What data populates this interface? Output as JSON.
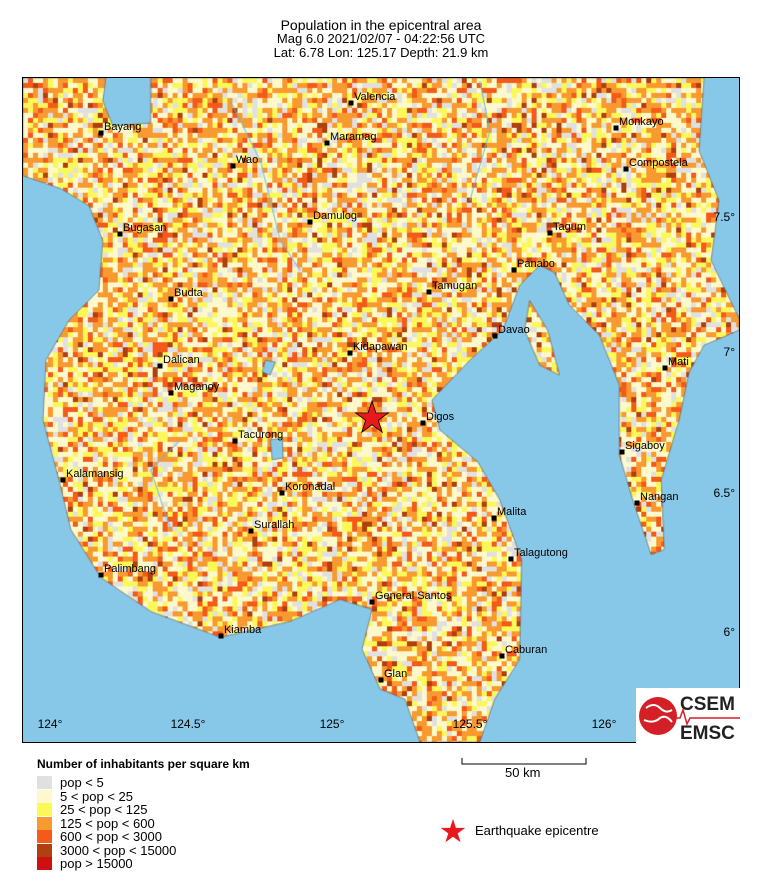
{
  "title": "Population in the epicentral area",
  "subtitle": "Mag 6.0  2021/02/07 - 04:22:56 UTC",
  "location": "Lat:  6.78    Lon: 125.17     Depth:  21.9 km",
  "colors": {
    "sea": "#87c8e8",
    "epicentre": "#e8181c"
  },
  "lon_ticks": [
    "124°",
    "124.5°",
    "125°",
    "125.5°",
    "126°"
  ],
  "lat_ticks": [
    "7.5°",
    "7°",
    "6.5°",
    "6°"
  ],
  "cities": [
    "Valencia",
    "Bayang",
    "Maramag",
    "Monkayo",
    "Wao",
    "Compostela",
    "Damulog",
    "Bugasan",
    "Tagum",
    "Panabo",
    "Tamugan",
    "Budta",
    "Davao",
    "Kidapawan",
    "Dalican",
    "Mati",
    "Maganoy",
    "Digos",
    "Tacurong",
    "Sigaboy",
    "Kalamansig",
    "Koronadal",
    "Nangan",
    "Malita",
    "Surallah",
    "Talagutong",
    "Palimbang",
    "General Santos",
    "Kiamba",
    "Caburan",
    "Glan"
  ],
  "legend": {
    "title": "Number of inhabitants per square km",
    "items": [
      {
        "label": "pop < 5",
        "color": "#e0e0e0"
      },
      {
        "label": "5 < pop < 25",
        "color": "#fdf9cc"
      },
      {
        "label": "25 < pop < 125",
        "color": "#fcf85a"
      },
      {
        "label": "125 < pop < 600",
        "color": "#f99a30"
      },
      {
        "label": "600 < pop < 3000",
        "color": "#f45a1a"
      },
      {
        "label": "3000 < pop < 15000",
        "color": "#b0400f"
      },
      {
        "label": "pop > 15000",
        "color": "#d01010"
      }
    ]
  },
  "scale_bar": "50 km",
  "epicentre_label": "Earthquake epicentre",
  "logo": {
    "top": "CSEM",
    "bottom": "EMSC"
  }
}
